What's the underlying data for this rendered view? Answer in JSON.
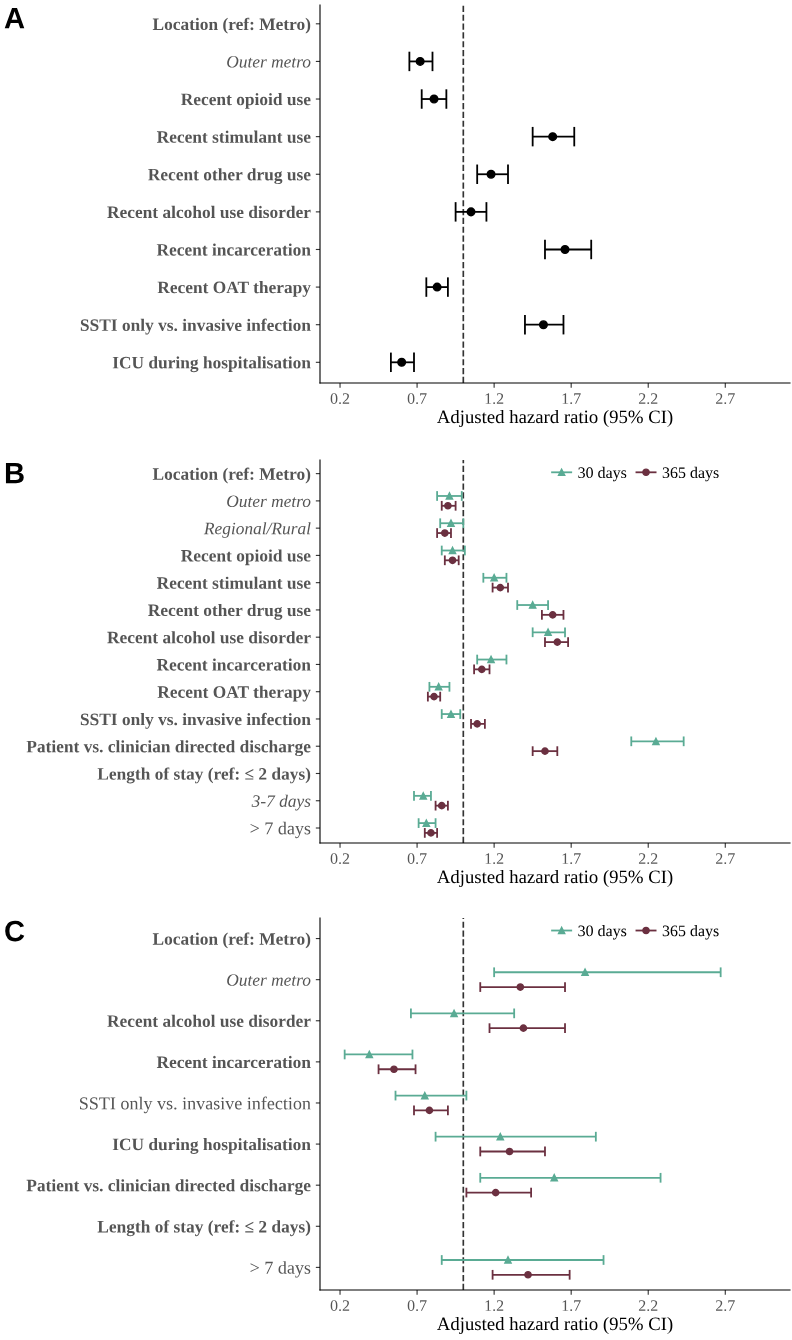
{
  "chart_data": [
    {
      "type": "scatter",
      "title": "A",
      "xlabel": "Adjusted hazard ratio (95% CI)",
      "orientation": "horizontal",
      "marker": "circle",
      "categories": [
        "Location (ref: Metro)",
        "Outer metro",
        "Recent opioid use",
        "Recent stimulant use",
        "Recent other drug use",
        "Recent alcohol use disorder",
        "Recent incarceration",
        "Recent OAT therapy",
        "SSTI only vs. invasive infection",
        "ICU during hospitalisation"
      ],
      "series": [
        {
          "color": "#000000",
          "values": [
            null,
            0.72,
            0.81,
            1.58,
            1.18,
            1.05,
            1.66,
            0.83,
            1.52,
            0.6
          ],
          "errors": [
            null,
            [
              0.65,
              0.8
            ],
            [
              0.73,
              0.89
            ],
            [
              1.45,
              1.72
            ],
            [
              1.09,
              1.29
            ],
            [
              0.95,
              1.15
            ],
            [
              1.53,
              1.83
            ],
            [
              0.76,
              0.9
            ],
            [
              1.4,
              1.65
            ],
            [
              0.53,
              0.68
            ]
          ]
        }
      ],
      "xlim": [
        0.07,
        3.12
      ],
      "xticks": [
        0.2,
        0.7,
        1.2,
        1.7,
        2.2,
        2.7
      ],
      "grid": false,
      "legend": false,
      "ref_lines": [
        {
          "axis": "x",
          "value": 1,
          "color": "#333333",
          "line_style": "dashed"
        }
      ]
    },
    {
      "type": "scatter",
      "title": "B",
      "xlabel": "Adjusted hazard ratio (95% CI)",
      "orientation": "horizontal",
      "categories": [
        "Location (ref: Metro)",
        "Outer metro",
        "Regional/Rural",
        "Recent opioid use",
        "Recent stimulant use",
        "Recent other drug use",
        "Recent alcohol use disorder",
        "Recent incarceration",
        "Recent OAT therapy",
        "SSTI only vs. invasive infection",
        "Patient vs. clinician directed discharge",
        "Length of stay (ref: ≤ 2 days)",
        "3-7 days",
        "> 7 days"
      ],
      "series": [
        {
          "name": "30 days",
          "color": "#5aab94",
          "marker": "triangle",
          "values": [
            null,
            0.91,
            0.92,
            0.93,
            1.2,
            1.45,
            1.55,
            1.18,
            0.84,
            0.92,
            2.25,
            null,
            0.74,
            0.76
          ],
          "errors": [
            null,
            [
              0.83,
              0.99
            ],
            [
              0.85,
              1.0
            ],
            [
              0.86,
              1.01
            ],
            [
              1.13,
              1.28
            ],
            [
              1.35,
              1.55
            ],
            [
              1.45,
              1.66
            ],
            [
              1.09,
              1.28
            ],
            [
              0.78,
              0.91
            ],
            [
              0.86,
              0.98
            ],
            [
              2.09,
              2.43
            ],
            null,
            [
              0.68,
              0.79
            ],
            [
              0.71,
              0.82
            ]
          ]
        },
        {
          "name": "365 days",
          "color": "#6b3040",
          "marker": "circle",
          "values": [
            null,
            0.9,
            0.88,
            0.93,
            1.24,
            1.58,
            1.61,
            1.12,
            0.81,
            1.09,
            1.53,
            null,
            0.86,
            0.79
          ],
          "errors": [
            null,
            [
              0.86,
              0.95
            ],
            [
              0.83,
              0.92
            ],
            [
              0.88,
              0.97
            ],
            [
              1.19,
              1.29
            ],
            [
              1.51,
              1.65
            ],
            [
              1.53,
              1.68
            ],
            [
              1.07,
              1.17
            ],
            [
              0.77,
              0.85
            ],
            [
              1.05,
              1.14
            ],
            [
              1.45,
              1.61
            ],
            null,
            [
              0.82,
              0.9
            ],
            [
              0.75,
              0.83
            ]
          ]
        }
      ],
      "xlim": [
        0.07,
        3.12
      ],
      "xticks": [
        0.2,
        0.7,
        1.2,
        1.7,
        2.2,
        2.7
      ],
      "grid": false,
      "legend": "top right",
      "ref_lines": [
        {
          "axis": "x",
          "value": 1,
          "color": "#333333",
          "line_style": "dashed"
        }
      ]
    },
    {
      "type": "scatter",
      "title": "C",
      "xlabel": "Adjusted hazard ratio (95% CI)",
      "orientation": "horizontal",
      "categories": [
        "Location (ref: Metro)",
        "Outer metro",
        "Recent alcohol use disorder",
        "Recent incarceration",
        "SSTI only vs. invasive infection",
        "ICU during hospitalisation",
        "Patient vs. clinician directed discharge",
        "Length of stay (ref: ≤ 2 days)",
        "> 7 days"
      ],
      "series": [
        {
          "name": "30 days",
          "color": "#5aab94",
          "marker": "triangle",
          "values": [
            null,
            1.79,
            0.94,
            0.39,
            0.75,
            1.24,
            1.59,
            null,
            1.29
          ],
          "errors": [
            null,
            [
              1.2,
              2.67
            ],
            [
              0.66,
              1.33
            ],
            [
              0.23,
              0.67
            ],
            [
              0.56,
              1.02
            ],
            [
              0.82,
              1.86
            ],
            [
              1.11,
              2.28
            ],
            null,
            [
              0.86,
              1.91
            ]
          ]
        },
        {
          "name": "365 days",
          "color": "#6b3040",
          "marker": "circle",
          "values": [
            null,
            1.37,
            1.39,
            0.55,
            0.78,
            1.3,
            1.21,
            null,
            1.42
          ],
          "errors": [
            null,
            [
              1.11,
              1.66
            ],
            [
              1.17,
              1.66
            ],
            [
              0.45,
              0.69
            ],
            [
              0.68,
              0.9
            ],
            [
              1.11,
              1.53
            ],
            [
              1.02,
              1.44
            ],
            null,
            [
              1.19,
              1.69
            ]
          ]
        }
      ],
      "xlim": [
        0.07,
        3.12
      ],
      "xticks": [
        0.2,
        0.7,
        1.2,
        1.7,
        2.2,
        2.7
      ],
      "grid": false,
      "legend": "top right",
      "ref_lines": [
        {
          "axis": "x",
          "value": 1,
          "color": "#333333",
          "line_style": "dashed"
        }
      ]
    }
  ]
}
